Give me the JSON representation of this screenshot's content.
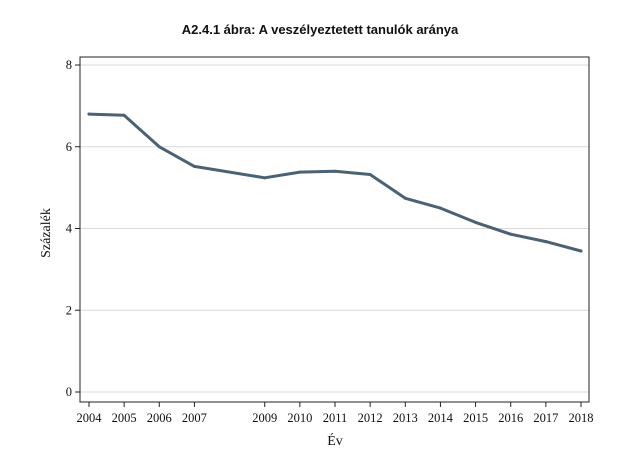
{
  "chart_data": {
    "type": "line",
    "title": "A2.4.1 ábra: A veszélyeztetett tanulók aránya",
    "xlabel": "Év",
    "ylabel": "Százalék",
    "ylim": [
      0,
      8
    ],
    "yticks": [
      0,
      2,
      4,
      6,
      8
    ],
    "xlim": [
      2004,
      2018
    ],
    "xticks": [
      2004,
      2005,
      2006,
      2007,
      2009,
      2010,
      2011,
      2012,
      2013,
      2014,
      2015,
      2016,
      2017,
      2018
    ],
    "grid": true,
    "legend": "none",
    "line_color": "#4a6274",
    "x": [
      2004,
      2005,
      2006,
      2007,
      2009,
      2010,
      2011,
      2012,
      2013,
      2014,
      2015,
      2016,
      2017,
      2018
    ],
    "values": [
      6.8,
      6.77,
      6.0,
      5.52,
      5.24,
      5.38,
      5.4,
      5.32,
      4.74,
      4.5,
      4.15,
      3.86,
      3.68,
      3.45
    ]
  }
}
